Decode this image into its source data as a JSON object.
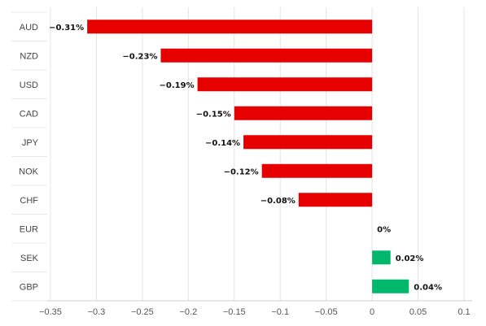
{
  "chart_data": {
    "type": "bar",
    "orientation": "horizontal",
    "categories": [
      "AUD",
      "NZD",
      "USD",
      "CAD",
      "JPY",
      "NOK",
      "CHF",
      "EUR",
      "SEK",
      "GBP"
    ],
    "values": [
      -0.31,
      -0.23,
      -0.19,
      -0.15,
      -0.14,
      -0.12,
      -0.08,
      0,
      0.02,
      0.04
    ],
    "data_labels": [
      "−0.31%",
      "−0.23%",
      "−0.19%",
      "−0.15%",
      "−0.14%",
      "−0.12%",
      "−0.08%",
      "0%",
      "0.02%",
      "0.04%"
    ],
    "x_ticks": [
      -0.35,
      -0.3,
      -0.25,
      -0.2,
      -0.15,
      -0.1,
      -0.05,
      0,
      0.05,
      0.1
    ],
    "x_tick_labels": [
      "−0.35",
      "−0.3",
      "−0.25",
      "−0.2",
      "−0.15",
      "−0.1",
      "−0.05",
      "0",
      "0.05",
      "0.1"
    ],
    "xlim": [
      -0.35,
      0.1
    ],
    "title": "",
    "xlabel": "",
    "ylabel": "",
    "grid": true,
    "legend": "none",
    "colors": {
      "negative": "#e60000",
      "positive": "#00b86b"
    }
  }
}
